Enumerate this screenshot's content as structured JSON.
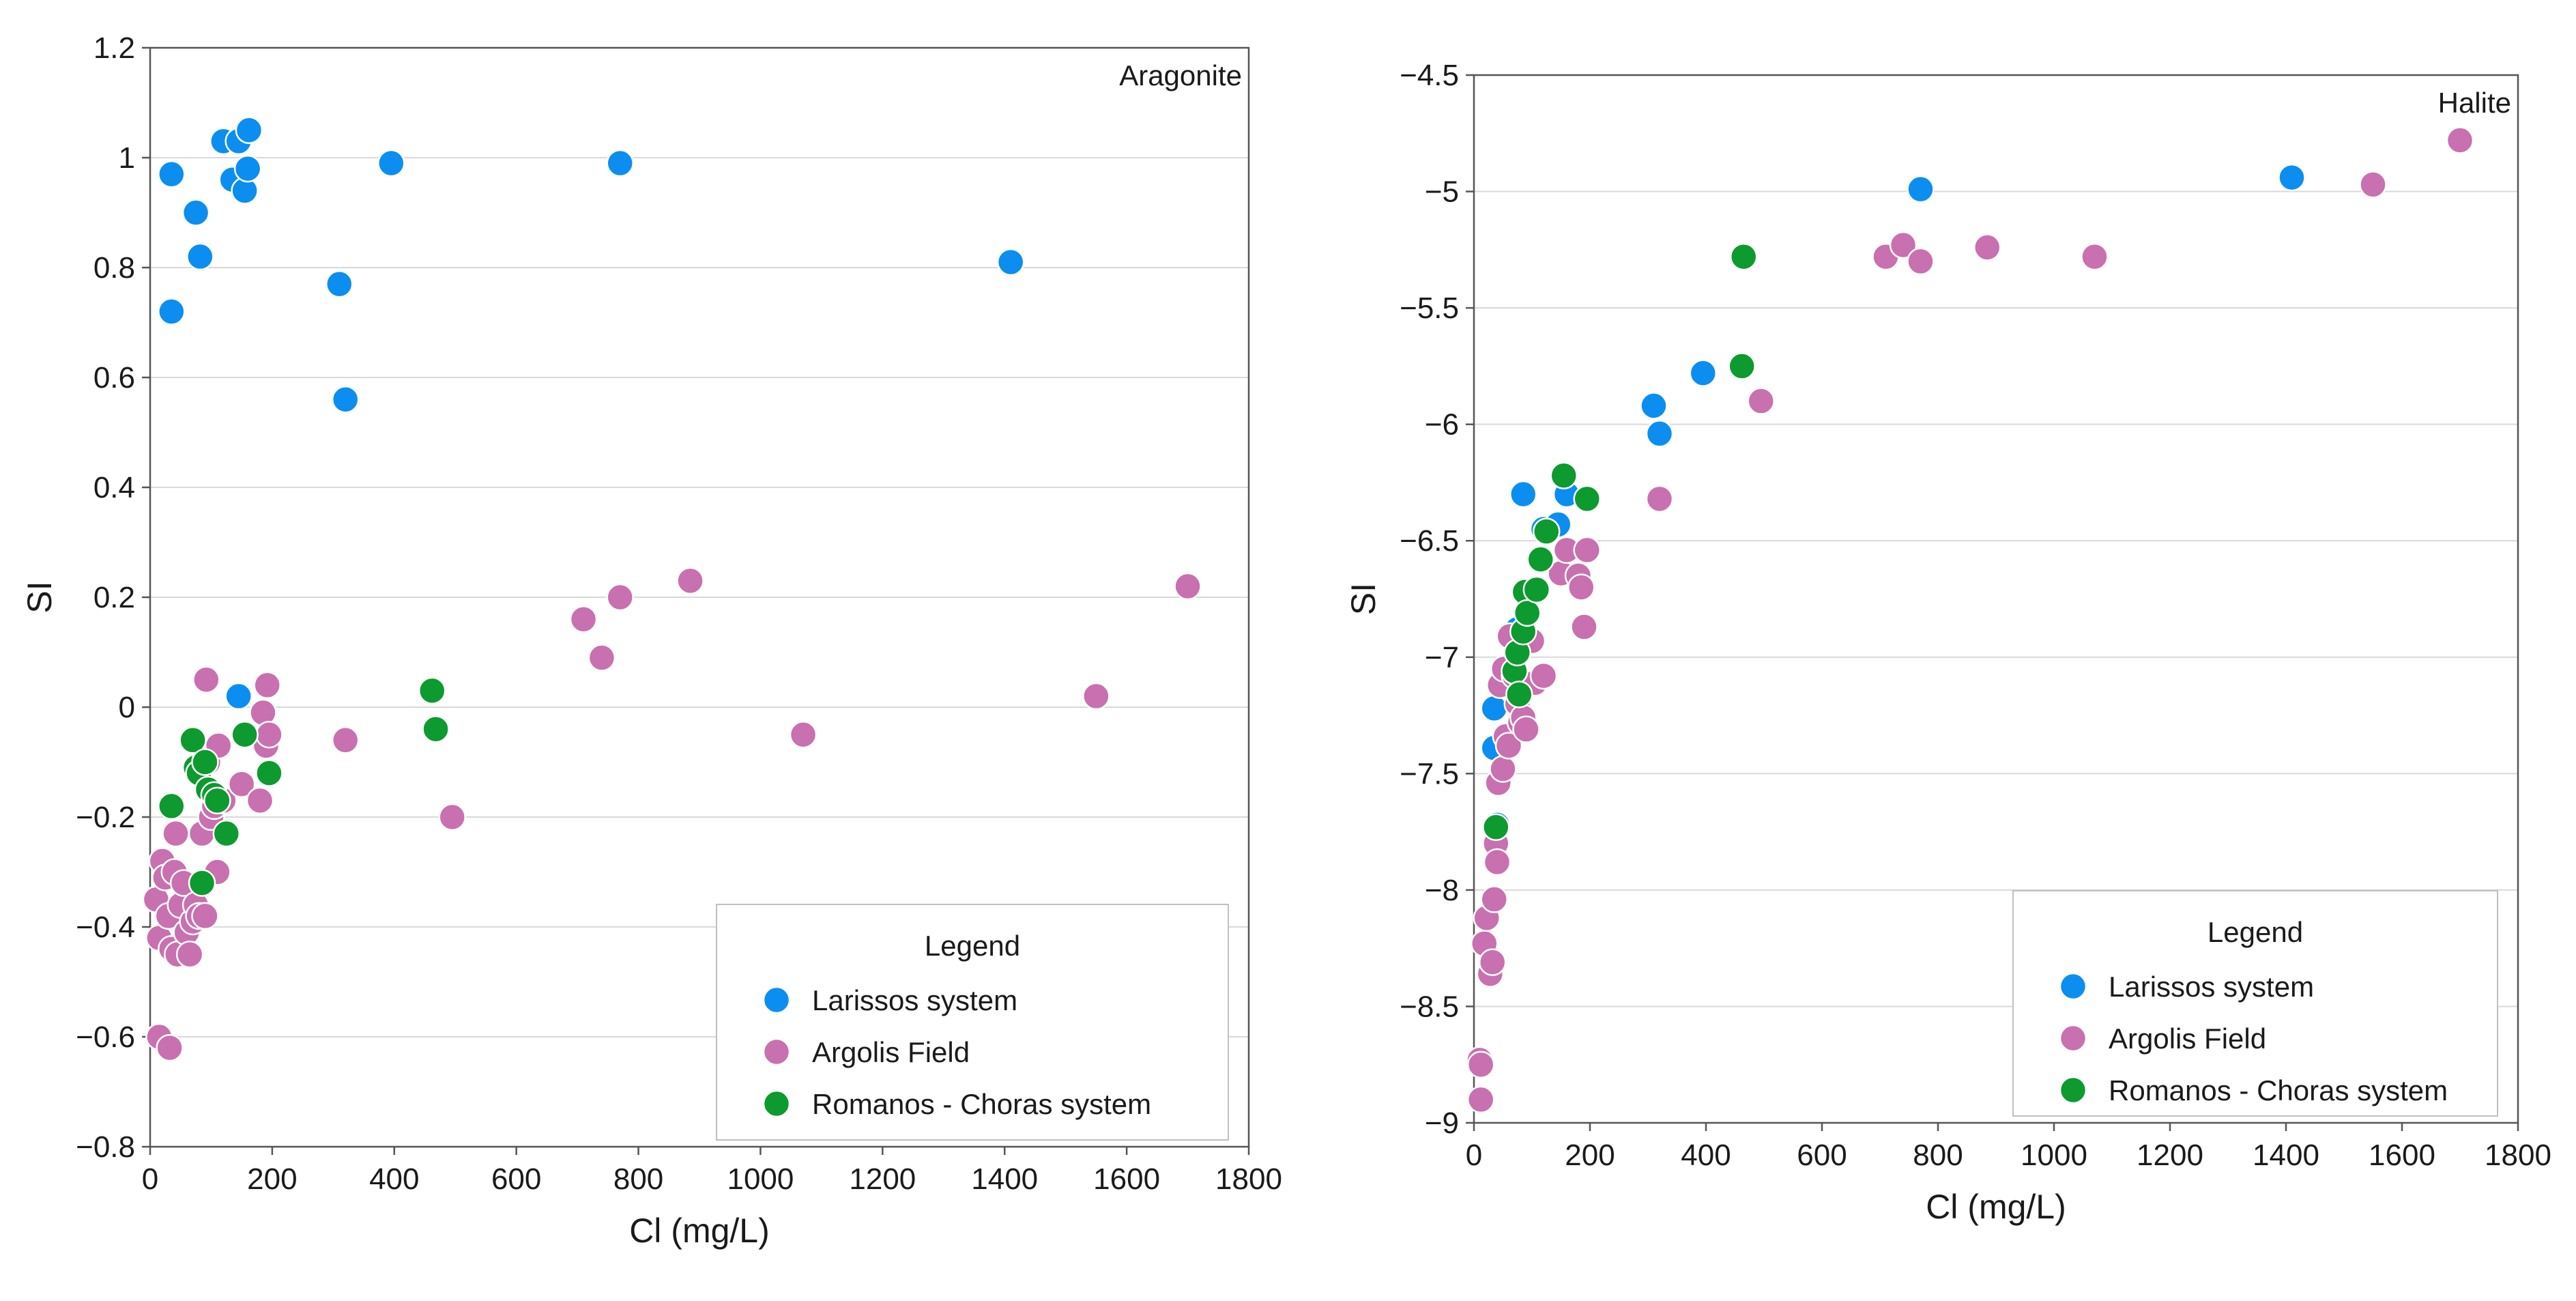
{
  "chart_data": [
    {
      "type": "scatter",
      "title": "Aragonite",
      "xlabel": "Cl (mg/L)",
      "ylabel": "SI",
      "xlim": [
        0,
        1800
      ],
      "ylim": [
        -0.8,
        1.2
      ],
      "xticks": [
        0,
        200,
        400,
        600,
        800,
        1000,
        1200,
        1400,
        1600,
        1800
      ],
      "xtick_labels": [
        "0",
        "200",
        "400",
        "600",
        "800",
        "1000",
        "1200",
        "1400",
        "1600",
        "1800"
      ],
      "yticks": [
        -0.8,
        -0.6,
        -0.4,
        -0.2,
        0,
        0.2,
        0.4,
        0.6,
        0.8,
        1,
        1.2
      ],
      "ytick_labels": [
        "−0.8",
        "−0.6",
        "−0.4",
        "−0.2",
        "0",
        "0.2",
        "0.4",
        "0.6",
        "0.8",
        "1",
        "1.2"
      ],
      "grid": "horizontal",
      "legend_title": "Legend",
      "legend_position": "bottom-right",
      "series": [
        {
          "name": "Larissos system",
          "color": "#0b8ef0",
          "points": [
            [
              35,
              0.97
            ],
            [
              35,
              0.72
            ],
            [
              75,
              0.9
            ],
            [
              82,
              0.82
            ],
            [
              120,
              1.03
            ],
            [
              135,
              0.96
            ],
            [
              145,
              1.03
            ],
            [
              155,
              0.94
            ],
            [
              160,
              0.98
            ],
            [
              162,
              1.05
            ],
            [
              310,
              0.77
            ],
            [
              320,
              0.56
            ],
            [
              395,
              0.99
            ],
            [
              770,
              0.99
            ],
            [
              1410,
              0.81
            ],
            [
              145,
              0.02
            ]
          ]
        },
        {
          "name": "Argolis Field",
          "color": "#c870b0",
          "points": [
            [
              10,
              -0.35
            ],
            [
              15,
              -0.42
            ],
            [
              20,
              -0.28
            ],
            [
              25,
              -0.31
            ],
            [
              30,
              -0.38
            ],
            [
              35,
              -0.44
            ],
            [
              40,
              -0.3
            ],
            [
              42,
              -0.23
            ],
            [
              45,
              -0.45
            ],
            [
              50,
              -0.36
            ],
            [
              55,
              -0.32
            ],
            [
              60,
              -0.41
            ],
            [
              65,
              -0.45
            ],
            [
              70,
              -0.39
            ],
            [
              75,
              -0.36
            ],
            [
              80,
              -0.38
            ],
            [
              85,
              -0.23
            ],
            [
              90,
              -0.38
            ],
            [
              92,
              0.05
            ],
            [
              95,
              -0.1
            ],
            [
              100,
              -0.2
            ],
            [
              105,
              -0.18
            ],
            [
              110,
              -0.3
            ],
            [
              112,
              -0.07
            ],
            [
              120,
              -0.17
            ],
            [
              150,
              -0.14
            ],
            [
              180,
              -0.17
            ],
            [
              185,
              -0.01
            ],
            [
              190,
              -0.07
            ],
            [
              192,
              0.04
            ],
            [
              195,
              -0.05
            ],
            [
              15,
              -0.6
            ],
            [
              32,
              -0.62
            ],
            [
              320,
              -0.06
            ],
            [
              495,
              -0.2
            ],
            [
              710,
              0.16
            ],
            [
              740,
              0.09
            ],
            [
              770,
              0.2
            ],
            [
              885,
              0.23
            ],
            [
              1070,
              -0.05
            ],
            [
              1550,
              0.02
            ],
            [
              1700,
              0.22
            ]
          ]
        },
        {
          "name": "Romanos - Choras system",
          "color": "#0d9a2e",
          "points": [
            [
              35,
              -0.18
            ],
            [
              70,
              -0.06
            ],
            [
              75,
              -0.11
            ],
            [
              80,
              -0.12
            ],
            [
              85,
              -0.32
            ],
            [
              90,
              -0.1
            ],
            [
              95,
              -0.15
            ],
            [
              105,
              -0.16
            ],
            [
              110,
              -0.17
            ],
            [
              125,
              -0.23
            ],
            [
              155,
              -0.05
            ],
            [
              195,
              -0.12
            ],
            [
              462,
              0.03
            ],
            [
              468,
              -0.04
            ]
          ]
        }
      ]
    },
    {
      "type": "scatter",
      "title": "Halite",
      "xlabel": "Cl (mg/L)",
      "ylabel": "SI",
      "xlim": [
        0,
        1800
      ],
      "ylim": [
        -9,
        -4.5
      ],
      "xticks": [
        0,
        200,
        400,
        600,
        800,
        1000,
        1200,
        1400,
        1600,
        1800
      ],
      "xtick_labels": [
        "0",
        "200",
        "400",
        "600",
        "800",
        "1000",
        "1200",
        "1400",
        "1600",
        "1800"
      ],
      "yticks": [
        -9,
        -8.5,
        -8,
        -7.5,
        -7,
        -6.5,
        -6,
        -5.5,
        -5,
        -4.5
      ],
      "ytick_labels": [
        "−9",
        "−8.5",
        "−8",
        "−7.5",
        "−7",
        "−6.5",
        "−6",
        "−5.5",
        "−5",
        "−4.5"
      ],
      "grid": "horizontal",
      "legend_title": "Legend",
      "legend_position": "bottom-right",
      "series": [
        {
          "name": "Larissos system",
          "color": "#0b8ef0",
          "points": [
            [
              35,
              -7.22
            ],
            [
              35,
              -7.39
            ],
            [
              40,
              -7.72
            ],
            [
              75,
              -6.88
            ],
            [
              85,
              -6.3
            ],
            [
              120,
              -6.45
            ],
            [
              145,
              -6.43
            ],
            [
              160,
              -6.3
            ],
            [
              310,
              -5.92
            ],
            [
              320,
              -6.04
            ],
            [
              395,
              -5.78
            ],
            [
              770,
              -4.99
            ],
            [
              1410,
              -4.94
            ]
          ]
        },
        {
          "name": "Argolis Field",
          "color": "#c870b0",
          "points": [
            [
              10,
              -8.73
            ],
            [
              12,
              -8.75
            ],
            [
              12,
              -8.9
            ],
            [
              18,
              -8.23
            ],
            [
              22,
              -8.12
            ],
            [
              28,
              -8.36
            ],
            [
              32,
              -8.31
            ],
            [
              35,
              -8.04
            ],
            [
              38,
              -7.8
            ],
            [
              40,
              -7.88
            ],
            [
              42,
              -7.54
            ],
            [
              45,
              -7.12
            ],
            [
              50,
              -7.48
            ],
            [
              52,
              -7.05
            ],
            [
              55,
              -7.34
            ],
            [
              60,
              -7.38
            ],
            [
              62,
              -6.91
            ],
            [
              70,
              -7.08
            ],
            [
              75,
              -7.2
            ],
            [
              80,
              -7.28
            ],
            [
              85,
              -7.26
            ],
            [
              90,
              -7.31
            ],
            [
              100,
              -6.93
            ],
            [
              105,
              -7.11
            ],
            [
              120,
              -7.08
            ],
            [
              150,
              -6.64
            ],
            [
              160,
              -6.54
            ],
            [
              180,
              -6.65
            ],
            [
              185,
              -6.7
            ],
            [
              190,
              -6.87
            ],
            [
              195,
              -6.54
            ],
            [
              320,
              -6.32
            ],
            [
              495,
              -5.9
            ],
            [
              710,
              -5.28
            ],
            [
              740,
              -5.23
            ],
            [
              770,
              -5.3
            ],
            [
              885,
              -5.24
            ],
            [
              1070,
              -5.28
            ],
            [
              1550,
              -4.97
            ],
            [
              1700,
              -4.78
            ]
          ]
        },
        {
          "name": "Romanos - Choras system",
          "color": "#0d9a2e",
          "points": [
            [
              38,
              -7.73
            ],
            [
              70,
              -7.06
            ],
            [
              75,
              -6.98
            ],
            [
              78,
              -7.16
            ],
            [
              85,
              -6.89
            ],
            [
              88,
              -6.72
            ],
            [
              92,
              -6.81
            ],
            [
              108,
              -6.71
            ],
            [
              115,
              -6.58
            ],
            [
              125,
              -6.46
            ],
            [
              155,
              -6.22
            ],
            [
              195,
              -6.32
            ],
            [
              462,
              -5.75
            ],
            [
              465,
              -5.28
            ]
          ]
        }
      ]
    }
  ]
}
